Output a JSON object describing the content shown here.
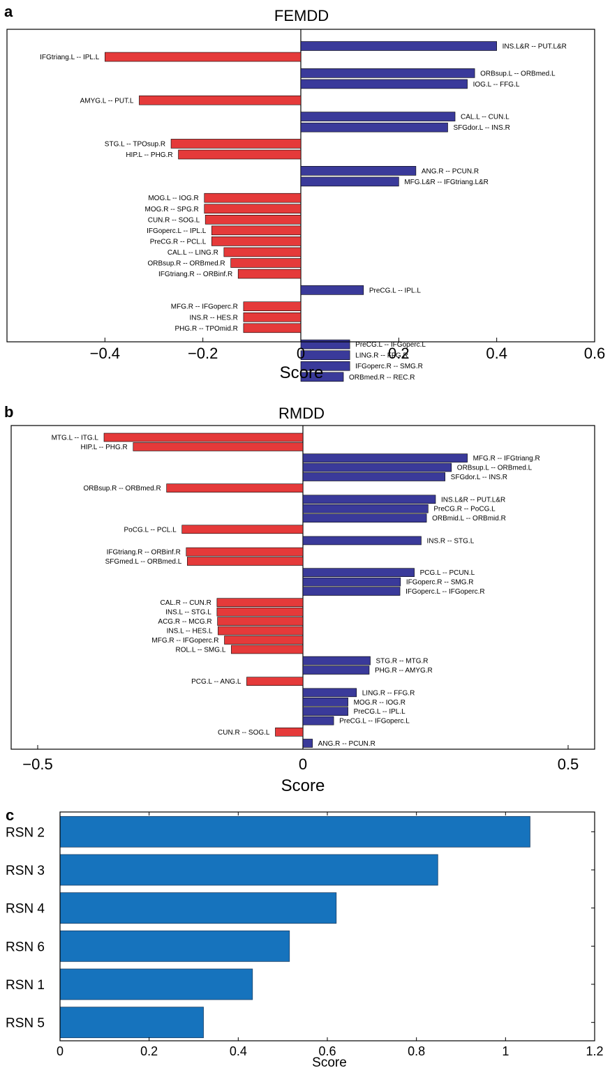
{
  "colors": {
    "positive": "#3a3a9a",
    "negative": "#e53a3a",
    "rsn": "#1673bd",
    "axis": "#000000"
  },
  "chart_data": [
    {
      "panel": "a",
      "type": "bar",
      "orientation": "horizontal",
      "title": "FEMDD",
      "xlabel": "Score",
      "xlim": [
        -0.6,
        0.6
      ],
      "xticks": [
        -0.4,
        -0.2,
        0,
        0.2,
        0.4,
        0.6
      ],
      "xtick_labels": [
        "−0.4",
        "−0.2",
        "0",
        "0.2",
        "0.4",
        "0.6"
      ],
      "bars": [
        {
          "label": "INS.L&R -- PUT.L&R",
          "value": 0.4
        },
        {
          "label": "IFGtriang.L -- IPL.L",
          "value": -0.4
        },
        {
          "label": "ORBsup.L -- ORBmed.L",
          "value": 0.355
        },
        {
          "label": "IOG.L -- FFG.L",
          "value": 0.34
        },
        {
          "label": "AMYG.L -- PUT.L",
          "value": -0.33
        },
        {
          "label": "CAL.L -- CUN.L",
          "value": 0.315
        },
        {
          "label": "SFGdor.L -- INS.R",
          "value": 0.3
        },
        {
          "label": "STG.L -- TPOsup.R",
          "value": -0.265
        },
        {
          "label": "HIP.L -- PHG.R",
          "value": -0.25
        },
        {
          "label": "ANG.R -- PCUN.R",
          "value": 0.235
        },
        {
          "label": "MFG.L&R -- IFGtriang.L&R",
          "value": 0.2
        },
        {
          "label": "MOG.L -- IOG.R",
          "value": -0.197
        },
        {
          "label": "MOG.R -- SPG.R",
          "value": -0.197
        },
        {
          "label": "CUN.R -- SOG.L",
          "value": -0.195
        },
        {
          "label": "IFGoperc.L -- IPL.L",
          "value": -0.182
        },
        {
          "label": "PreCG.R -- PCL.L",
          "value": -0.182
        },
        {
          "label": "CAL.L -- LING.R",
          "value": -0.157
        },
        {
          "label": "ORBsup.R -- ORBmed.R",
          "value": -0.143
        },
        {
          "label": "IFGtriang.R -- ORBinf.R",
          "value": -0.128
        },
        {
          "label": "PreCG.L -- IPL.L",
          "value": 0.128
        },
        {
          "label": "MFG.R -- IFGoperc.R",
          "value": -0.117
        },
        {
          "label": "INS.R -- HES.R",
          "value": -0.117
        },
        {
          "label": "PHG.R -- TPOmid.R",
          "value": -0.117
        },
        {
          "label": "PreCG.L -- IFGoperc.L",
          "value": 0.1
        },
        {
          "label": "LING.R -- FFG.R",
          "value": 0.1
        },
        {
          "label": "IFGoperc.R -- SMG.R",
          "value": 0.1
        },
        {
          "label": "ORBmed.R -- REC.R",
          "value": 0.087
        }
      ],
      "rows": [
        0,
        1,
        2.5,
        3.5,
        5,
        6.5,
        7.5,
        9,
        10,
        11.5,
        12.5,
        14,
        15,
        16,
        17,
        18,
        19,
        20,
        21,
        22.5,
        24,
        25,
        26,
        27.5,
        28.5,
        29.5,
        30.5
      ]
    },
    {
      "panel": "b",
      "type": "bar",
      "orientation": "horizontal",
      "title": "RMDD",
      "xlabel": "Score",
      "xlim": [
        -0.55,
        0.55
      ],
      "xticks": [
        -0.5,
        0,
        0.5
      ],
      "xtick_labels": [
        "−0.5",
        "0",
        "0.5"
      ],
      "bars": [
        {
          "label": "MTG.L -- ITG.L",
          "value": -0.375
        },
        {
          "label": "HIP.L -- PHG.R",
          "value": -0.32
        },
        {
          "label": "MFG.R -- IFGtriang.R",
          "value": 0.31
        },
        {
          "label": "ORBsup.L -- ORBmed.L",
          "value": 0.28
        },
        {
          "label": "SFGdor.L -- INS.R",
          "value": 0.268
        },
        {
          "label": "ORBsup.R -- ORBmed.R",
          "value": -0.257
        },
        {
          "label": "INS.L&R -- PUT.L&R",
          "value": 0.25
        },
        {
          "label": "PreCG.R -- PoCG.L",
          "value": 0.236
        },
        {
          "label": "ORBmid.L -- ORBmid.R",
          "value": 0.233
        },
        {
          "label": "PoCG.L -- PCL.L",
          "value": -0.228
        },
        {
          "label": "INS.R -- STG.L",
          "value": 0.223
        },
        {
          "label": "IFGtriang.R -- ORBinf.R",
          "value": -0.22
        },
        {
          "label": "SFGmed.L -- ORBmed.L",
          "value": -0.218
        },
        {
          "label": "PCG.L -- PCUN.L",
          "value": 0.21
        },
        {
          "label": "IFGoperc.R -- SMG.R",
          "value": 0.184
        },
        {
          "label": "IFGoperc.L -- IFGoperc.R",
          "value": 0.183
        },
        {
          "label": "CAL.R -- CUN.R",
          "value": -0.162
        },
        {
          "label": "INS.L -- STG.L",
          "value": -0.162
        },
        {
          "label": "ACG.R -- MCG.R",
          "value": -0.161
        },
        {
          "label": "INS.L -- HES.L",
          "value": -0.16
        },
        {
          "label": "MFG.R -- IFGoperc.R",
          "value": -0.148
        },
        {
          "label": "ROL.L -- SMG.L",
          "value": -0.135
        },
        {
          "label": "STG.R -- MTG.R",
          "value": 0.127
        },
        {
          "label": "PHG.R -- AMYG.R",
          "value": 0.125
        },
        {
          "label": "PCG.L -- ANG.L",
          "value": -0.106
        },
        {
          "label": "LING.R -- FFG.R",
          "value": 0.101
        },
        {
          "label": "MOG.R -- IOG.R",
          "value": 0.085
        },
        {
          "label": "PreCG.L -- IPL.L",
          "value": 0.085
        },
        {
          "label": "PreCG.L -- IFGoperc.L",
          "value": 0.058
        },
        {
          "label": "CUN.R -- SOG.L",
          "value": -0.052
        },
        {
          "label": "ANG.R -- PCUN.R",
          "value": 0.018
        }
      ],
      "rows": [
        0,
        1,
        2.2,
        3.2,
        4.2,
        5.4,
        6.6,
        7.6,
        8.6,
        9.8,
        11,
        12.2,
        13.2,
        14.4,
        15.4,
        16.4,
        17.6,
        18.6,
        19.6,
        20.6,
        21.6,
        22.6,
        23.8,
        24.8,
        26,
        27.2,
        28.2,
        29.2,
        30.2,
        31.4,
        32.6
      ]
    },
    {
      "panel": "c",
      "type": "bar",
      "orientation": "horizontal",
      "title": "",
      "xlabel": "Score",
      "xlim": [
        0,
        1.2
      ],
      "xticks": [
        0,
        0.2,
        0.4,
        0.6,
        0.8,
        1,
        1.2
      ],
      "xtick_labels": [
        "0",
        "0.2",
        "0.4",
        "0.6",
        "0.8",
        "1",
        "1.2"
      ],
      "categories": [
        "RSN 2",
        "RSN 3",
        "RSN 4",
        "RSN 6",
        "RSN 1",
        "RSN 5"
      ],
      "values": [
        1.055,
        0.848,
        0.62,
        0.515,
        0.432,
        0.322
      ]
    }
  ]
}
